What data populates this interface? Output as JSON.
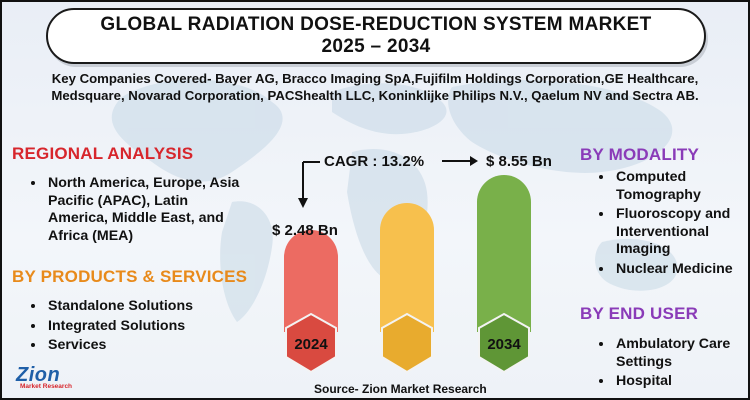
{
  "title": {
    "line1": "GLOBAL RADIATION DOSE-REDUCTION SYSTEM MARKET",
    "line2": "2025 – 2034"
  },
  "companies": {
    "line1": "Key Companies Covered- Bayer AG, Bracco Imaging SpA,Fujifilm Holdings Corporation,GE Healthcare,",
    "line2": "Medsquare, Novarad Corporation, PACShealth LLC, Koninklijke Philips N.V., Qaelum NV and Sectra AB."
  },
  "regional": {
    "heading": "REGIONAL ANALYSIS",
    "items": [
      "North America, Europe, Asia Pacific (APAC), Latin America, Middle East, and Africa (MEA)"
    ]
  },
  "products": {
    "heading": "BY PRODUCTS & SERVICES",
    "items": [
      "Standalone Solutions",
      "Integrated Solutions",
      "Services"
    ]
  },
  "modality": {
    "heading": "BY MODALITY",
    "items": [
      "Computed Tomography",
      "Fluoroscopy and Interventional Imaging",
      "Nuclear Medicine"
    ]
  },
  "end_user": {
    "heading": "BY END USER",
    "items": [
      "Ambulatory Care Settings",
      "Hospital"
    ]
  },
  "chart": {
    "cagr": "CAGR : 13.2%",
    "value_start": "$ 2.48 Bn",
    "value_end": "$ 8.55 Bn",
    "year_start": "2024",
    "year_end": "2034"
  },
  "colors": {
    "red": "#d7262c",
    "orange": "#e88a1b",
    "purple": "#8a3bb8",
    "bar_red": "#ec6b62",
    "bar_yellow": "#f7c04d",
    "bar_green": "#79b04a"
  },
  "logo": {
    "main": "Zion",
    "sub": "Market Research"
  },
  "source": "Source- Zion Market Research"
}
